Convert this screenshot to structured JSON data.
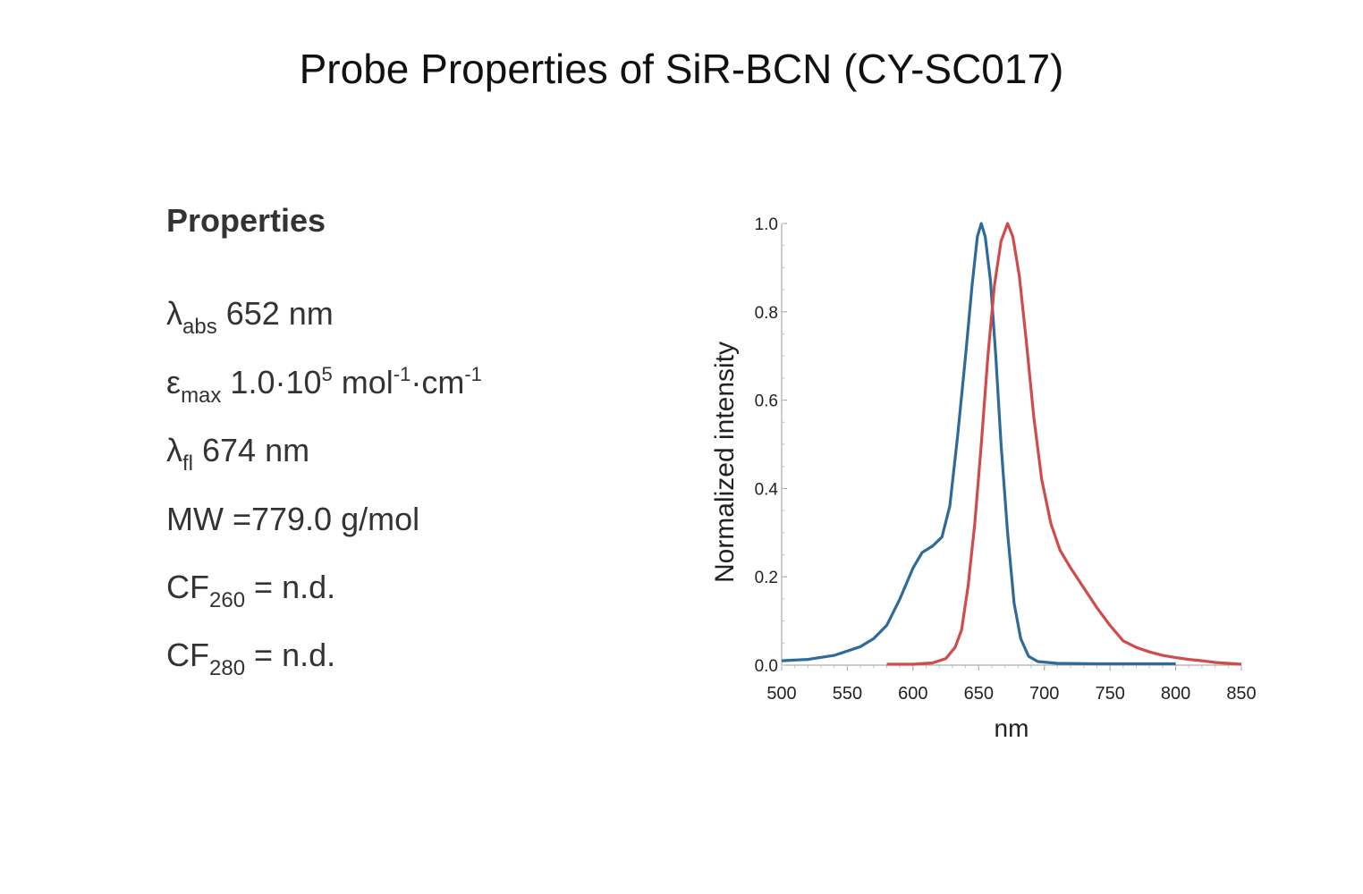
{
  "title": "Probe Properties of SiR-BCN (CY-SC017)",
  "properties": {
    "heading": "Properties",
    "lambda_abs": {
      "symbol": "λ",
      "sub": "abs",
      "value": "652 nm"
    },
    "epsilon_max": {
      "symbol": "ε",
      "sub": "max",
      "value_base": "1.0·10",
      "value_exp": "5",
      "unit_a": " mol",
      "unit_a_exp": "-1",
      "unit_b": "·cm",
      "unit_b_exp": "-1"
    },
    "lambda_fl": {
      "symbol": "λ",
      "sub": "fl",
      "value": "674 nm"
    },
    "mw": "MW =779.0 g/mol",
    "cf260": {
      "base": "CF",
      "sub": "260",
      "value": " = n.d."
    },
    "cf280": {
      "base": "CF",
      "sub": "280",
      "value": " = n.d."
    }
  },
  "chart_data": {
    "type": "line",
    "xlabel": "nm",
    "ylabel": "Normalized intensity",
    "xlim": [
      500,
      850
    ],
    "ylim": [
      0,
      1.0
    ],
    "xticks": [
      500,
      550,
      600,
      650,
      700,
      750,
      800,
      850
    ],
    "yticks": [
      "0.0",
      "0.2",
      "0.4",
      "0.6",
      "0.8",
      "1.0"
    ],
    "grid": false,
    "series": [
      {
        "color": "#2e6a9a",
        "points": [
          [
            500,
            0.01
          ],
          [
            520,
            0.013
          ],
          [
            540,
            0.022
          ],
          [
            560,
            0.042
          ],
          [
            570,
            0.06
          ],
          [
            580,
            0.09
          ],
          [
            590,
            0.15
          ],
          [
            600,
            0.22
          ],
          [
            607,
            0.255
          ],
          [
            615,
            0.27
          ],
          [
            622,
            0.29
          ],
          [
            628,
            0.36
          ],
          [
            634,
            0.52
          ],
          [
            640,
            0.7
          ],
          [
            645,
            0.86
          ],
          [
            649,
            0.97
          ],
          [
            652,
            1.0
          ],
          [
            655,
            0.97
          ],
          [
            659,
            0.87
          ],
          [
            663,
            0.7
          ],
          [
            667,
            0.5
          ],
          [
            672,
            0.3
          ],
          [
            677,
            0.14
          ],
          [
            682,
            0.06
          ],
          [
            688,
            0.02
          ],
          [
            695,
            0.008
          ],
          [
            710,
            0.004
          ],
          [
            740,
            0.003
          ],
          [
            770,
            0.003
          ],
          [
            800,
            0.003
          ]
        ]
      },
      {
        "color": "#d04b4b",
        "points": [
          [
            580,
            0.002
          ],
          [
            600,
            0.002
          ],
          [
            615,
            0.005
          ],
          [
            625,
            0.015
          ],
          [
            632,
            0.04
          ],
          [
            637,
            0.08
          ],
          [
            642,
            0.18
          ],
          [
            647,
            0.32
          ],
          [
            652,
            0.5
          ],
          [
            657,
            0.7
          ],
          [
            662,
            0.86
          ],
          [
            667,
            0.96
          ],
          [
            672,
            1.0
          ],
          [
            676,
            0.97
          ],
          [
            681,
            0.88
          ],
          [
            686,
            0.74
          ],
          [
            692,
            0.56
          ],
          [
            698,
            0.42
          ],
          [
            705,
            0.32
          ],
          [
            712,
            0.26
          ],
          [
            720,
            0.22
          ],
          [
            730,
            0.175
          ],
          [
            740,
            0.13
          ],
          [
            750,
            0.09
          ],
          [
            760,
            0.055
          ],
          [
            770,
            0.04
          ],
          [
            780,
            0.03
          ],
          [
            790,
            0.022
          ],
          [
            800,
            0.017
          ],
          [
            810,
            0.013
          ],
          [
            820,
            0.01
          ],
          [
            830,
            0.006
          ],
          [
            840,
            0.004
          ],
          [
            850,
            0.002
          ]
        ]
      }
    ]
  }
}
